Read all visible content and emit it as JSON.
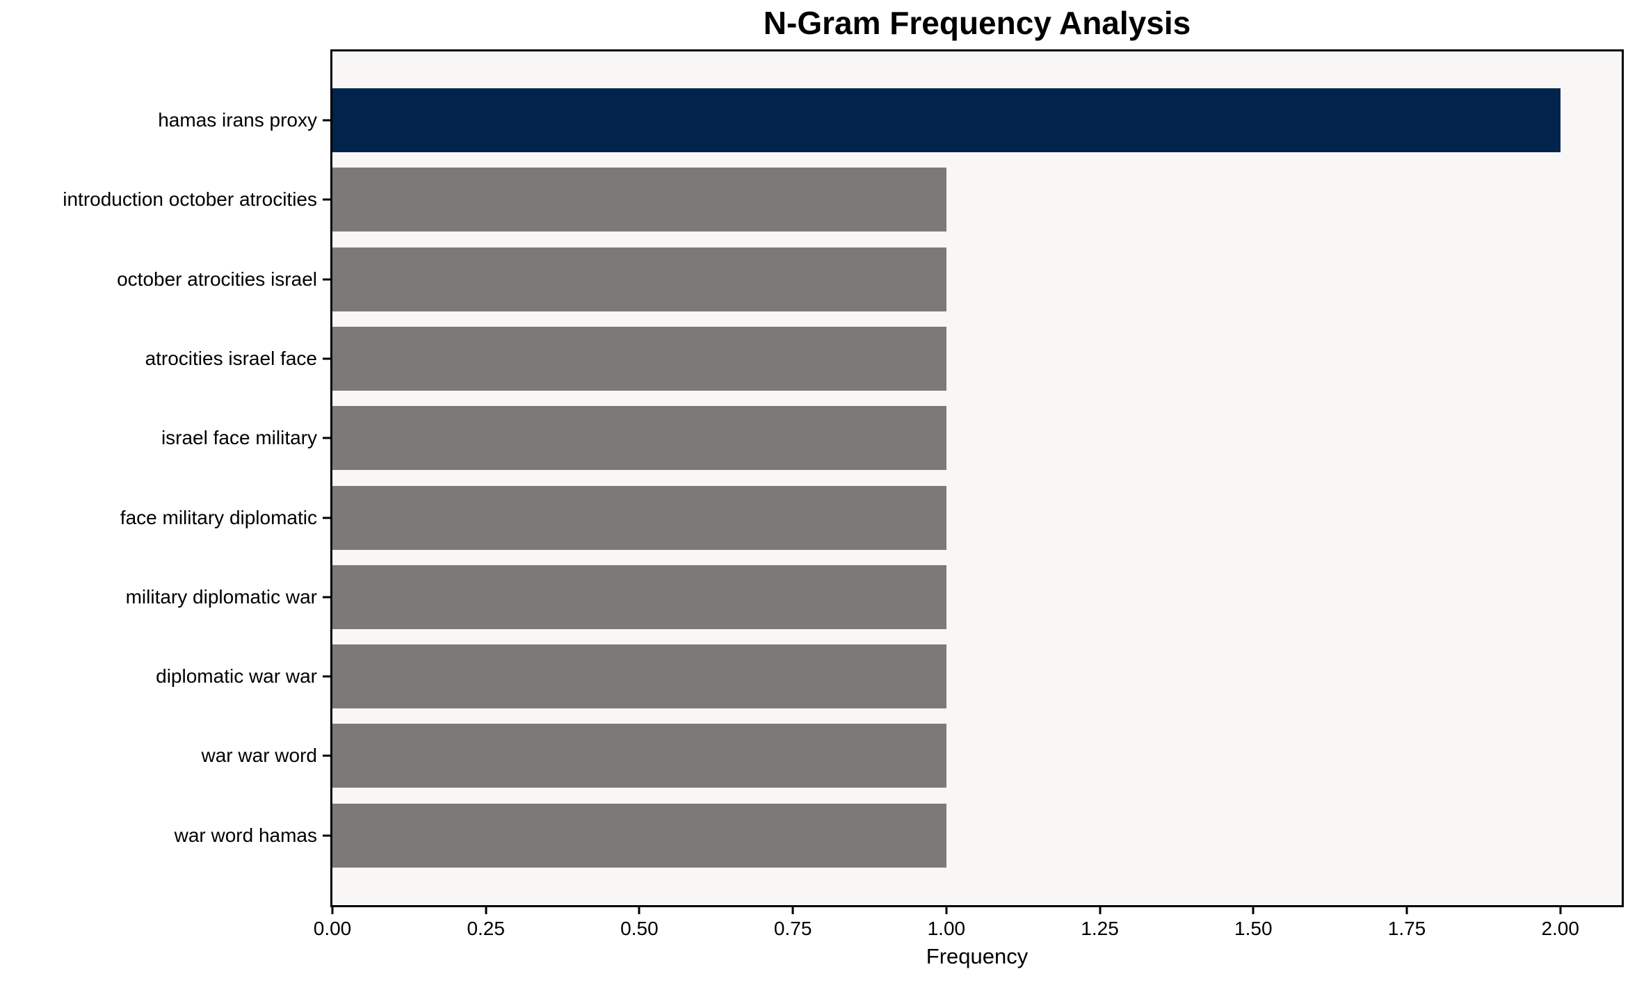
{
  "chart_data": {
    "type": "bar",
    "orientation": "horizontal",
    "title": "N-Gram Frequency Analysis",
    "xlabel": "Frequency",
    "ylabel": "",
    "categories": [
      "hamas irans proxy",
      "introduction october atrocities",
      "october atrocities israel",
      "atrocities israel face",
      "israel face military",
      "face military diplomatic",
      "military diplomatic war",
      "diplomatic war war",
      "war war word",
      "war word hamas"
    ],
    "values": [
      2,
      1,
      1,
      1,
      1,
      1,
      1,
      1,
      1,
      1
    ],
    "bar_colors": [
      "#02234c",
      "#7b7a77",
      "#7b7a77",
      "#7b7a77",
      "#7b7a77",
      "#7b7a77",
      "#7b7a77",
      "#7b7a77",
      "#7b7a77",
      "#7b7a77"
    ],
    "xlim": [
      0,
      2.1
    ],
    "xticks": [
      {
        "value": 0.0,
        "label": "0.00"
      },
      {
        "value": 0.25,
        "label": "0.25"
      },
      {
        "value": 0.5,
        "label": "0.50"
      },
      {
        "value": 0.75,
        "label": "0.75"
      },
      {
        "value": 1.0,
        "label": "1.00"
      },
      {
        "value": 1.25,
        "label": "1.25"
      },
      {
        "value": 1.5,
        "label": "1.50"
      },
      {
        "value": 1.75,
        "label": "1.75"
      },
      {
        "value": 2.0,
        "label": "2.00"
      }
    ],
    "grid": false,
    "legend": null,
    "colors": {
      "highlight_bar": "#02234c",
      "default_bar": "#7b7a77",
      "plot_background": "#f8f7f6",
      "figure_background": "#ffffff",
      "axis": "#000000",
      "text": "#000000"
    }
  }
}
